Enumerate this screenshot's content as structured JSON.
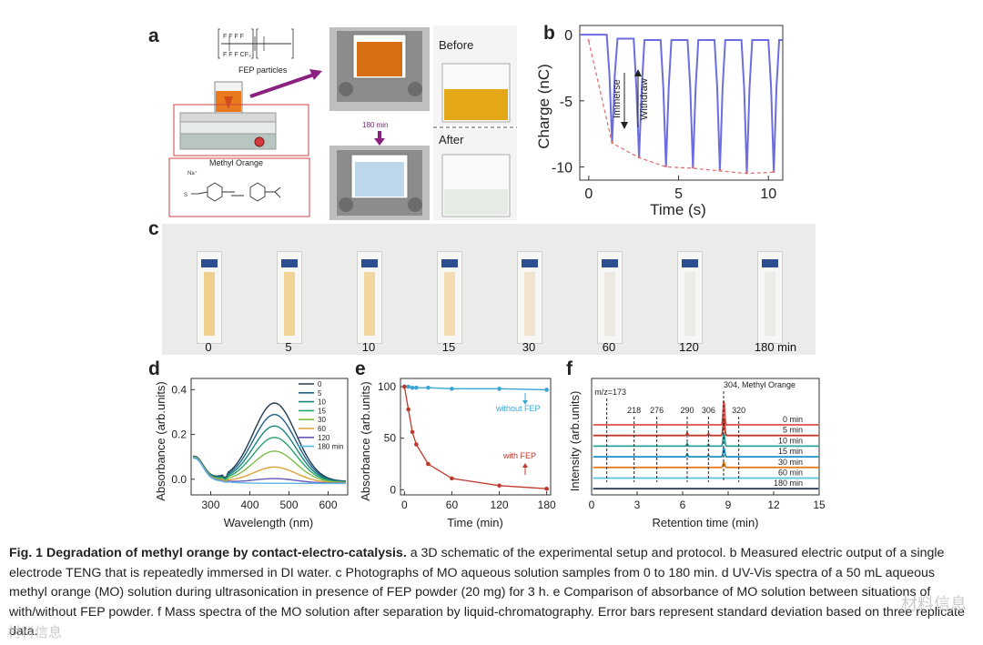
{
  "panels": {
    "a": "a",
    "b": "b",
    "c": "c",
    "d": "d",
    "e": "e",
    "f": "f"
  },
  "panel_a": {
    "fep_label": "FEP particles",
    "mo_label": "Methyl Orange",
    "na_label": "Na⁺",
    "time_label": "180 min",
    "before": "Before",
    "after": "After",
    "formula_top": "F  F    F  F",
    "formula_bot": "F  F    F  CF₃"
  },
  "panel_c": {
    "labels": [
      "0",
      "5",
      "10",
      "15",
      "30",
      "60",
      "120",
      "180 min"
    ],
    "colors": [
      "#f0cf8c",
      "#f2d396",
      "#f1d6a0",
      "#f2dcb0",
      "#f0e4cc",
      "#ece9e2",
      "#ecebe7",
      "#ecebe8"
    ]
  },
  "chart_data": [
    {
      "id": "b",
      "type": "line",
      "title": "",
      "xlabel": "Time (s)",
      "ylabel": "Charge (nC)",
      "xlim": [
        -0.5,
        10.8
      ],
      "ylim": [
        -11,
        0.7
      ],
      "xticks": [
        0,
        5,
        10
      ],
      "yticks": [
        0,
        -5,
        -10
      ],
      "annotations": [
        "Immerse",
        "Withdraw"
      ],
      "series": [
        {
          "name": "charge",
          "color": "#6b6de0",
          "x": [
            -0.5,
            1.0,
            1.15,
            1.3,
            1.45,
            1.6,
            2.5,
            2.65,
            2.8,
            2.95,
            3.1,
            4.0,
            4.15,
            4.3,
            4.45,
            4.6,
            5.5,
            5.65,
            5.8,
            5.95,
            6.1,
            7.0,
            7.15,
            7.3,
            7.45,
            7.6,
            8.5,
            8.65,
            8.8,
            8.95,
            9.1,
            10.0,
            10.15,
            10.3,
            10.45,
            10.6,
            10.8
          ],
          "y": [
            0,
            0,
            -3,
            -8.2,
            -3,
            -0.3,
            -0.3,
            -4,
            -9.3,
            -4,
            -0.4,
            -0.4,
            -4,
            -10.0,
            -4,
            -0.4,
            -0.4,
            -4,
            -10.1,
            -4,
            -0.4,
            -0.4,
            -4,
            -10.3,
            -4,
            -0.4,
            -0.4,
            -4,
            -10.5,
            -4,
            -0.4,
            -0.4,
            -4,
            -10.4,
            -4,
            -0.4,
            -0.4
          ]
        },
        {
          "name": "envelope",
          "color": "#e06a6a",
          "dashed": true,
          "x": [
            0,
            1.3,
            2.8,
            4.3,
            5.8,
            7.3,
            8.8,
            10.3
          ],
          "y": [
            -0.5,
            -8.2,
            -9.3,
            -10.0,
            -10.1,
            -10.3,
            -10.5,
            -10.4
          ]
        }
      ]
    },
    {
      "id": "d",
      "type": "line",
      "xlabel": "Wavelength (nm)",
      "ylabel": "Absorbance (arb.units)",
      "xlim": [
        250,
        650
      ],
      "ylim": [
        -0.07,
        0.45
      ],
      "xticks": [
        300,
        400,
        500,
        600
      ],
      "yticks": [
        0.0,
        0.2,
        0.4
      ],
      "legend": [
        "0",
        "5",
        "10",
        "15",
        "30",
        "60",
        "120",
        "180 min"
      ],
      "colors": [
        "#1f3b4d",
        "#1f5f8b",
        "#16857a",
        "#27a46a",
        "#7fbf4a",
        "#e0a13a",
        "#6a58b8",
        "#5fb5e6"
      ],
      "peaks": [
        0.35,
        0.3,
        0.25,
        0.2,
        0.14,
        0.07,
        0.02,
        0.0
      ]
    },
    {
      "id": "e",
      "type": "line",
      "xlabel": "Time (min)",
      "ylabel": "Absorbance (arb.units)",
      "xlim": [
        -5,
        185
      ],
      "ylim": [
        -5,
        108
      ],
      "xticks": [
        0,
        60,
        120,
        180
      ],
      "yticks": [
        0,
        50,
        100
      ],
      "annotations": [
        "without FEP",
        "with FEP"
      ],
      "series": [
        {
          "name": "without FEP",
          "color": "#3aa6d6",
          "x": [
            0,
            5,
            10,
            15,
            30,
            60,
            120,
            180
          ],
          "y": [
            100,
            100,
            99,
            99,
            99,
            98,
            98,
            97
          ]
        },
        {
          "name": "with FEP",
          "color": "#c0392b",
          "x": [
            0,
            5,
            10,
            15,
            30,
            60,
            120,
            180
          ],
          "y": [
            100,
            78,
            56,
            44,
            25,
            11,
            4,
            1
          ]
        }
      ]
    },
    {
      "id": "f",
      "type": "line",
      "xlabel": "Retention time (min)",
      "ylabel": "Intensity (arb.units)",
      "xlim": [
        0,
        15
      ],
      "xticks": [
        0,
        3,
        6,
        9,
        12,
        15
      ],
      "markers": [
        {
          "x": 1.0,
          "label": "m/z=173"
        },
        {
          "x": 2.8,
          "label": "218"
        },
        {
          "x": 4.3,
          "label": "276"
        },
        {
          "x": 6.3,
          "label": "290"
        },
        {
          "x": 7.7,
          "label": "306"
        },
        {
          "x": 8.7,
          "label": "304, Methyl Orange"
        },
        {
          "x": 9.7,
          "label": "320"
        }
      ],
      "traces": [
        "0 min",
        "5 min",
        "10 min",
        "15 min",
        "30 min",
        "60 min",
        "180 min"
      ],
      "colors": [
        "#d9534f",
        "#c0392b",
        "#2aa198",
        "#1f8fc4",
        "#e67e22",
        "#5bc0de",
        "#2c3e50"
      ],
      "peak_heights": [
        28,
        20,
        14,
        10,
        6,
        0,
        0
      ]
    }
  ],
  "caption": {
    "title": "Fig. 1 Degradation of methyl orange by contact-electro-catalysis.",
    "body": " a 3D schematic of the experimental setup and protocol. b Measured electric output of a single electrode TENG that is repeatedly immersed in DI water. c Photographs of MO aqueous solution samples from 0 to 180 min. d UV-Vis spectra of a 50 mL aqueous methyl orange (MO) solution during ultrasonication in presence of FEP powder (20 mg) for 3 h. e Comparison of absorbance of MO solution between situations of with/without FEP powder. f Mass spectra of the MO solution after separation by liquid-chromatography. Error bars represent standard deviation based on three replicate data."
  },
  "watermark": {
    "right": "材料信息",
    "left": "材料信息"
  }
}
